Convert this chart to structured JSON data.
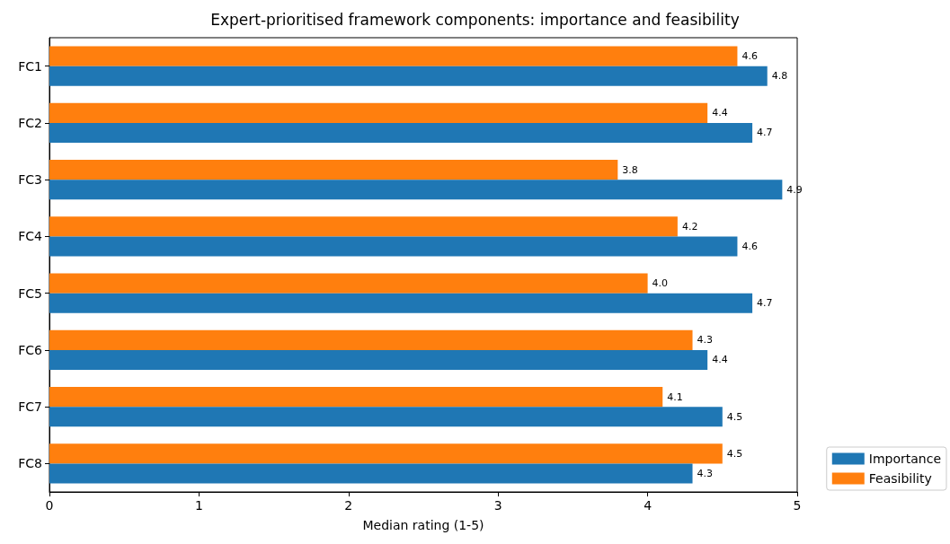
{
  "chart_data": {
    "type": "bar",
    "orientation": "horizontal",
    "title": "Expert-prioritised framework components: importance and feasibility",
    "xlabel": "Median rating (1-5)",
    "categories": [
      "FC1",
      "FC2",
      "FC3",
      "FC4",
      "FC5",
      "FC6",
      "FC7",
      "FC8"
    ],
    "series": [
      {
        "name": "Importance",
        "color": "#1f77b4",
        "values": [
          4.8,
          4.7,
          4.9,
          4.6,
          4.7,
          4.4,
          4.5,
          4.3
        ],
        "value_labels": [
          "4.8",
          "4.7",
          "4.9",
          "4.6",
          "4.7",
          "4.4",
          "4.5",
          "4.3"
        ]
      },
      {
        "name": "Feasibility",
        "color": "#ff7f0e",
        "values": [
          4.6,
          4.4,
          3.8,
          4.2,
          4.0,
          4.3,
          4.1,
          4.5
        ],
        "value_labels": [
          "4.6",
          "4.4",
          "3.8",
          "4.2",
          "4.0",
          "4.3",
          "4.1",
          "4.5"
        ]
      }
    ],
    "xlim": [
      0,
      5
    ],
    "xticks": [
      0,
      1,
      2,
      3,
      4,
      5
    ],
    "legend": "bottom right",
    "grid": false
  }
}
